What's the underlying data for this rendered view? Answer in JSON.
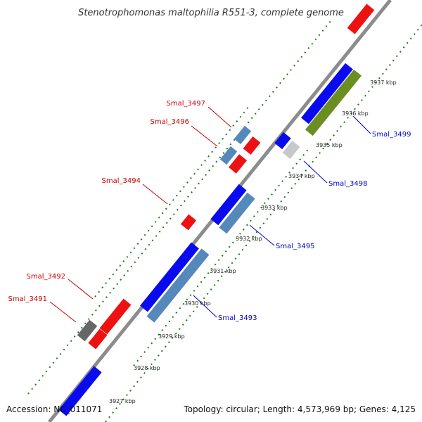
{
  "title": "Stenotrophomonas maltophilia R551-3, complete genome",
  "footer": {
    "accession": "Accession: NC_011071",
    "summary": "Topology: circular; Length: 4,573,969 bp; Genes: 4,125"
  },
  "colors": {
    "backbone": "#8c8c8c",
    "forward_gene": "#ee1111",
    "reverse_gene": "#0a0aee",
    "steel_gene": "#5588bb",
    "olive_gene": "#6b8e23",
    "gray_gene": "#666666",
    "light_gray_gene": "#c8c8c8",
    "gc_dots": "#1a7a1a",
    "forward_label": "#cc0000",
    "reverse_label": "#0000cc"
  },
  "gene_labels_forward": [
    "Smal_3497",
    "Smal_3496",
    "Smal_3494",
    "Smal_3492",
    "Smal_3491"
  ],
  "gene_labels_reverse": [
    "Smal_3499",
    "Smal_3498",
    "Smal_3495",
    "Smal_3493"
  ],
  "kbp_ticks": [
    "3937 kbp",
    "3936 kbp",
    "3935 kbp",
    "3934 kbp",
    "3933 kbp",
    "3932 kbp",
    "3931 kbp",
    "3930 kbp",
    "3929 kbp",
    "3928 kbp",
    "3927 kbp"
  ]
}
